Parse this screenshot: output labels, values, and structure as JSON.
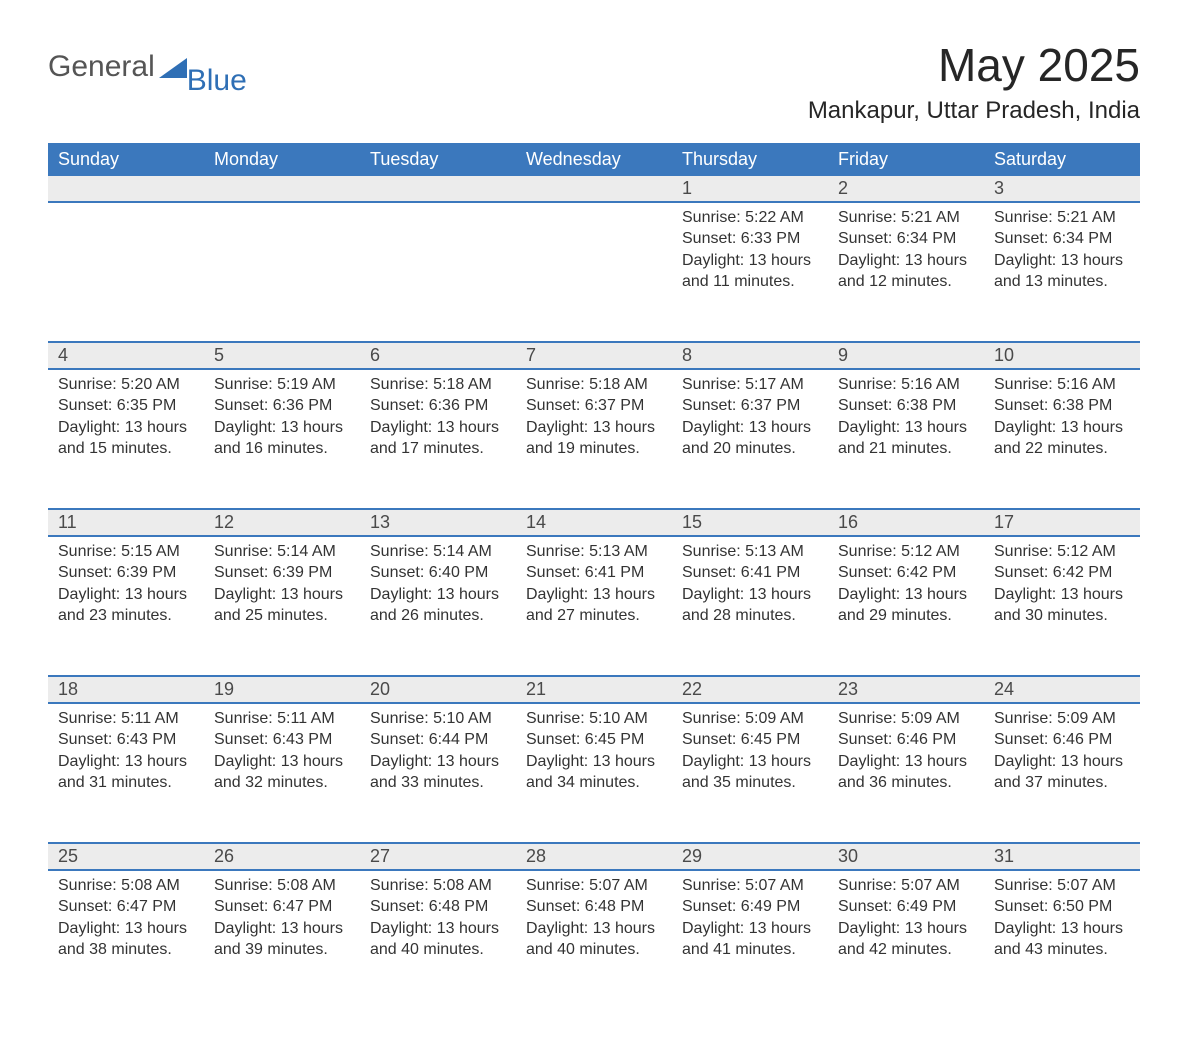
{
  "logo": {
    "text1": "General",
    "text2": "Blue"
  },
  "header": {
    "title": "May 2025",
    "subtitle": "Mankapur, Uttar Pradesh, India"
  },
  "colors": {
    "header_bg": "#3b78bd",
    "header_text": "#ffffff",
    "daynum_bg": "#ececec",
    "page_bg": "#ffffff",
    "text": "#333333",
    "logo_blue": "#2f6fb5",
    "logo_gray": "#555555"
  },
  "day_headers": [
    "Sunday",
    "Monday",
    "Tuesday",
    "Wednesday",
    "Thursday",
    "Friday",
    "Saturday"
  ],
  "weeks": [
    [
      null,
      null,
      null,
      null,
      {
        "num": "1",
        "sunrise": "5:22 AM",
        "sunset": "6:33 PM",
        "daylight": "13 hours and 11 minutes."
      },
      {
        "num": "2",
        "sunrise": "5:21 AM",
        "sunset": "6:34 PM",
        "daylight": "13 hours and 12 minutes."
      },
      {
        "num": "3",
        "sunrise": "5:21 AM",
        "sunset": "6:34 PM",
        "daylight": "13 hours and 13 minutes."
      }
    ],
    [
      {
        "num": "4",
        "sunrise": "5:20 AM",
        "sunset": "6:35 PM",
        "daylight": "13 hours and 15 minutes."
      },
      {
        "num": "5",
        "sunrise": "5:19 AM",
        "sunset": "6:36 PM",
        "daylight": "13 hours and 16 minutes."
      },
      {
        "num": "6",
        "sunrise": "5:18 AM",
        "sunset": "6:36 PM",
        "daylight": "13 hours and 17 minutes."
      },
      {
        "num": "7",
        "sunrise": "5:18 AM",
        "sunset": "6:37 PM",
        "daylight": "13 hours and 19 minutes."
      },
      {
        "num": "8",
        "sunrise": "5:17 AM",
        "sunset": "6:37 PM",
        "daylight": "13 hours and 20 minutes."
      },
      {
        "num": "9",
        "sunrise": "5:16 AM",
        "sunset": "6:38 PM",
        "daylight": "13 hours and 21 minutes."
      },
      {
        "num": "10",
        "sunrise": "5:16 AM",
        "sunset": "6:38 PM",
        "daylight": "13 hours and 22 minutes."
      }
    ],
    [
      {
        "num": "11",
        "sunrise": "5:15 AM",
        "sunset": "6:39 PM",
        "daylight": "13 hours and 23 minutes."
      },
      {
        "num": "12",
        "sunrise": "5:14 AM",
        "sunset": "6:39 PM",
        "daylight": "13 hours and 25 minutes."
      },
      {
        "num": "13",
        "sunrise": "5:14 AM",
        "sunset": "6:40 PM",
        "daylight": "13 hours and 26 minutes."
      },
      {
        "num": "14",
        "sunrise": "5:13 AM",
        "sunset": "6:41 PM",
        "daylight": "13 hours and 27 minutes."
      },
      {
        "num": "15",
        "sunrise": "5:13 AM",
        "sunset": "6:41 PM",
        "daylight": "13 hours and 28 minutes."
      },
      {
        "num": "16",
        "sunrise": "5:12 AM",
        "sunset": "6:42 PM",
        "daylight": "13 hours and 29 minutes."
      },
      {
        "num": "17",
        "sunrise": "5:12 AM",
        "sunset": "6:42 PM",
        "daylight": "13 hours and 30 minutes."
      }
    ],
    [
      {
        "num": "18",
        "sunrise": "5:11 AM",
        "sunset": "6:43 PM",
        "daylight": "13 hours and 31 minutes."
      },
      {
        "num": "19",
        "sunrise": "5:11 AM",
        "sunset": "6:43 PM",
        "daylight": "13 hours and 32 minutes."
      },
      {
        "num": "20",
        "sunrise": "5:10 AM",
        "sunset": "6:44 PM",
        "daylight": "13 hours and 33 minutes."
      },
      {
        "num": "21",
        "sunrise": "5:10 AM",
        "sunset": "6:45 PM",
        "daylight": "13 hours and 34 minutes."
      },
      {
        "num": "22",
        "sunrise": "5:09 AM",
        "sunset": "6:45 PM",
        "daylight": "13 hours and 35 minutes."
      },
      {
        "num": "23",
        "sunrise": "5:09 AM",
        "sunset": "6:46 PM",
        "daylight": "13 hours and 36 minutes."
      },
      {
        "num": "24",
        "sunrise": "5:09 AM",
        "sunset": "6:46 PM",
        "daylight": "13 hours and 37 minutes."
      }
    ],
    [
      {
        "num": "25",
        "sunrise": "5:08 AM",
        "sunset": "6:47 PM",
        "daylight": "13 hours and 38 minutes."
      },
      {
        "num": "26",
        "sunrise": "5:08 AM",
        "sunset": "6:47 PM",
        "daylight": "13 hours and 39 minutes."
      },
      {
        "num": "27",
        "sunrise": "5:08 AM",
        "sunset": "6:48 PM",
        "daylight": "13 hours and 40 minutes."
      },
      {
        "num": "28",
        "sunrise": "5:07 AM",
        "sunset": "6:48 PM",
        "daylight": "13 hours and 40 minutes."
      },
      {
        "num": "29",
        "sunrise": "5:07 AM",
        "sunset": "6:49 PM",
        "daylight": "13 hours and 41 minutes."
      },
      {
        "num": "30",
        "sunrise": "5:07 AM",
        "sunset": "6:49 PM",
        "daylight": "13 hours and 42 minutes."
      },
      {
        "num": "31",
        "sunrise": "5:07 AM",
        "sunset": "6:50 PM",
        "daylight": "13 hours and 43 minutes."
      }
    ]
  ],
  "labels": {
    "sunrise_prefix": "Sunrise: ",
    "sunset_prefix": "Sunset: ",
    "daylight_prefix": "Daylight: "
  }
}
